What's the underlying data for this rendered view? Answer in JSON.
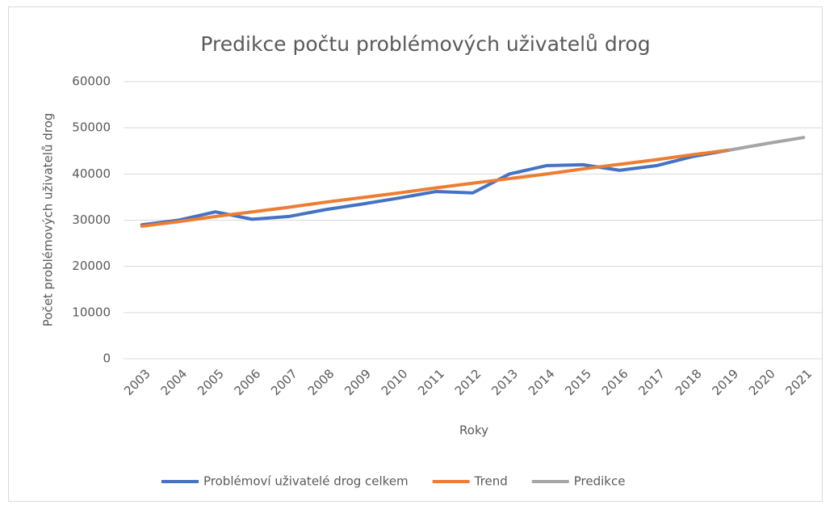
{
  "chart_data": {
    "type": "line",
    "title": "Predikce počtu problémových uživatelů drog",
    "x_label": "Roky",
    "y_label": "Počet problémových uživatelů drog",
    "categories": [
      "2003",
      "2004",
      "2005",
      "2006",
      "2007",
      "2008",
      "2009",
      "2010",
      "2011",
      "2012",
      "2013",
      "2014",
      "2015",
      "2016",
      "2017",
      "2018",
      "2019",
      "2020",
      "2021"
    ],
    "series": [
      {
        "name": "Problémoví uživatelé drog celkem",
        "color": "#4472c4",
        "values": [
          29000,
          30000,
          31800,
          30200,
          30800,
          32300,
          33500,
          34800,
          36200,
          35900,
          40000,
          41800,
          42000,
          40800,
          41800,
          43800,
          45200,
          null,
          null
        ]
      },
      {
        "name": "Trend",
        "color": "#ed7d31",
        "values": [
          28700,
          29700,
          30800,
          31800,
          32800,
          33900,
          34900,
          35900,
          37000,
          38000,
          39000,
          40000,
          41100,
          42100,
          43100,
          44200,
          45200,
          null,
          null
        ]
      },
      {
        "name": "Predikce",
        "color": "#a5a5a5",
        "values": [
          null,
          null,
          null,
          null,
          null,
          null,
          null,
          null,
          null,
          null,
          null,
          null,
          null,
          null,
          null,
          null,
          45200,
          46600,
          47900
        ]
      }
    ],
    "ylim": [
      0,
      60000
    ],
    "yticks": [
      0,
      10000,
      20000,
      30000,
      40000,
      50000,
      60000
    ],
    "grid": true,
    "legend": "bottom"
  }
}
